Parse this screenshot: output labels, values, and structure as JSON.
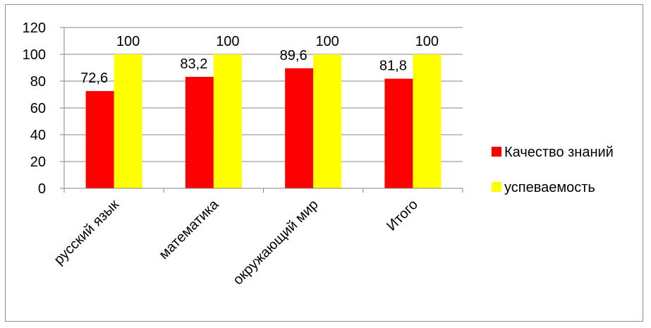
{
  "chart_data": {
    "type": "bar",
    "categories": [
      "русский язык",
      "математика",
      "окружающий мир",
      "Итого"
    ],
    "series": [
      {
        "name": "Качество знаний",
        "values": [
          72.6,
          83.2,
          89.6,
          81.8
        ],
        "labels": [
          "72,6",
          "83,2",
          "89,6",
          "81,8"
        ],
        "color": "#ff0000"
      },
      {
        "name": "успеваемость",
        "values": [
          100,
          100,
          100,
          100
        ],
        "labels": [
          "100",
          "100",
          "100",
          "100"
        ],
        "color": "#ffff00"
      }
    ],
    "yticks": [
      "0",
      "20",
      "40",
      "60",
      "80",
      "100",
      "120"
    ],
    "ylim": [
      0,
      120
    ],
    "grid": true,
    "legend_position": "right"
  }
}
